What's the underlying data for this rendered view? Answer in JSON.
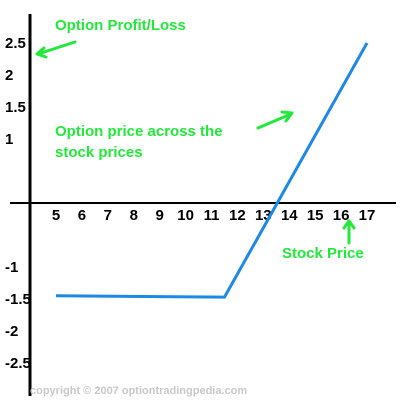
{
  "chart_data": {
    "type": "line",
    "title": "Option Profit/Loss",
    "xlabel": "Stock Price",
    "ylabel": "",
    "xlim": [
      4,
      17.6
    ],
    "ylim": [
      -2.9,
      2.7
    ],
    "x_ticks": [
      "5",
      "6",
      "7",
      "8",
      "9",
      "10",
      "11",
      "12",
      "13",
      "14",
      "15",
      "16",
      "17"
    ],
    "y_ticks": [
      "2.5",
      "2",
      "1.5",
      "1",
      "-1",
      "-1.5",
      "-2",
      "-2.5"
    ],
    "y_tick_values": [
      2.5,
      2,
      1.5,
      1,
      -1,
      -1.5,
      -2,
      -2.5
    ],
    "series": [
      {
        "x": [
          5,
          11.5,
          17
        ],
        "y": [
          -1.45,
          -1.47,
          2.5
        ]
      }
    ],
    "annotations": [
      {
        "text": "Option Profit/Loss"
      },
      {
        "text": "Option price across the stock prices"
      },
      {
        "text": "Stock Price"
      }
    ],
    "colors": {
      "line": "#1e88e5",
      "annotation": "#22e83a",
      "axis": "#000000",
      "credit": "#c8c8c8"
    },
    "grid": false,
    "legend": "none"
  },
  "credit": "copyright © 2007 optiontradingpedia.com"
}
